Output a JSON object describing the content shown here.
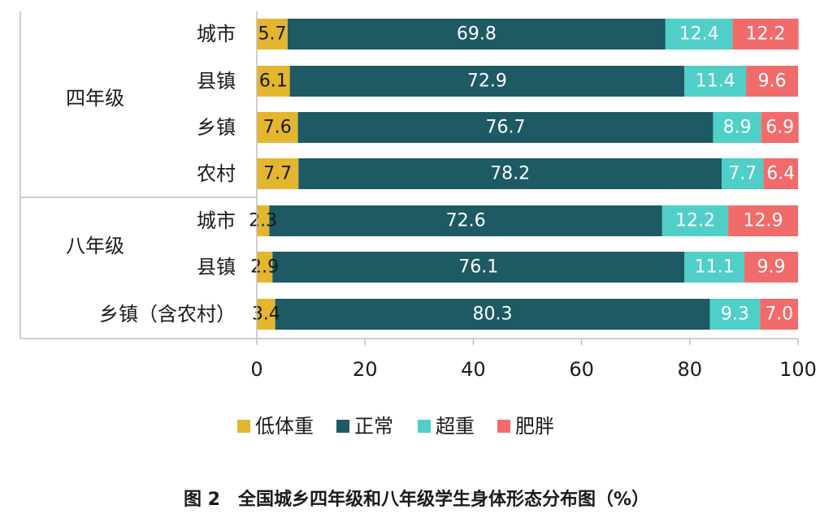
{
  "chart_data": {
    "type": "bar",
    "orientation": "horizontal",
    "stacked": true,
    "groups": [
      {
        "label": "四年级",
        "categories": [
          "城市",
          "县镇",
          "乡镇",
          "农村"
        ]
      },
      {
        "label": "八年级",
        "categories": [
          "城市",
          "县镇",
          "乡镇（含农村）"
        ]
      }
    ],
    "series": [
      {
        "name": "低体重",
        "color": "#e3b62e",
        "values": [
          5.7,
          6.1,
          7.6,
          7.7,
          2.3,
          2.9,
          3.4
        ]
      },
      {
        "name": "正常",
        "color": "#1d5a63",
        "values": [
          69.8,
          72.9,
          76.7,
          78.2,
          72.6,
          76.1,
          80.3
        ]
      },
      {
        "name": "超重",
        "color": "#4fcfc7",
        "values": [
          12.4,
          11.4,
          8.9,
          7.7,
          12.2,
          11.1,
          9.3
        ]
      },
      {
        "name": "肥胖",
        "color": "#f26b6b",
        "values": [
          12.2,
          9.6,
          6.9,
          6.4,
          12.9,
          9.9,
          7.0
        ]
      }
    ],
    "xlim": [
      0,
      100
    ],
    "xticks": [
      0,
      20,
      40,
      60,
      80,
      100
    ],
    "legend_position": "bottom",
    "grid": false,
    "title": "图 2　全国城乡四年级和八年级学生身体形态分布图（%）"
  }
}
